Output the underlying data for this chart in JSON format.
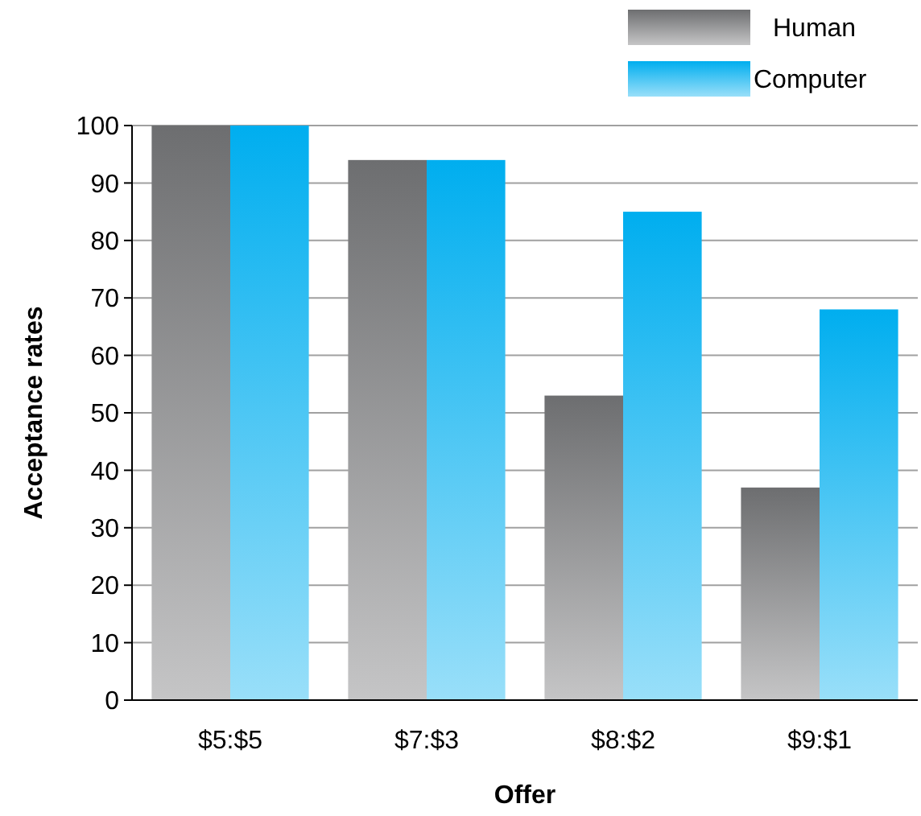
{
  "chart_data": {
    "type": "bar",
    "xlabel": "Offer",
    "ylabel": "Acceptance rates",
    "categories": [
      "$5:$5",
      "$7:$3",
      "$8:$2",
      "$9:$1"
    ],
    "series": [
      {
        "name": "Human",
        "color": "#6d6e70",
        "values": [
          100,
          94,
          53,
          37
        ]
      },
      {
        "name": "Computer",
        "color": "#00aeef",
        "values": [
          100,
          94,
          85,
          68
        ]
      }
    ],
    "ylim": [
      0,
      100
    ],
    "yticks": [
      0,
      10,
      20,
      30,
      40,
      50,
      60,
      70,
      80,
      90,
      100
    ],
    "grid": "y",
    "legend": "top right"
  }
}
